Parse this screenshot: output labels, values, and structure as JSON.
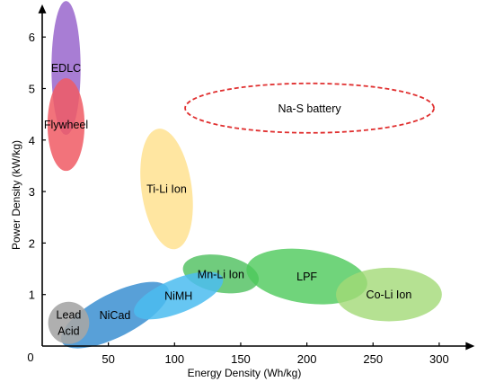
{
  "chart_data": {
    "type": "scatter",
    "title": "",
    "xlabel": "Energy Density (Wh/kg)",
    "ylabel": "Power Density (kW/kg)",
    "xlim": [
      0,
      320
    ],
    "ylim": [
      0,
      6.6
    ],
    "x_ticks": [
      50,
      100,
      150,
      200,
      250,
      300
    ],
    "y_ticks": [
      1,
      2,
      3,
      4,
      5,
      6
    ],
    "origin_label": "0",
    "grid": false,
    "legend": "none",
    "regions": [
      {
        "name": "EDLC",
        "label_lines": [
          "EDLC"
        ],
        "cx": 18,
        "cy": 5.4,
        "rx": 11,
        "ry": 1.3,
        "angle": 0,
        "color": "#9966cc",
        "opacity": 0.85,
        "style": "filled"
      },
      {
        "name": "Flywheel",
        "label_lines": [
          "Flywheel"
        ],
        "cx": 18,
        "cy": 4.3,
        "rx": 14,
        "ry": 0.9,
        "angle": 0,
        "color": "#f05a64",
        "opacity": 0.85,
        "style": "filled"
      },
      {
        "name": "Ti-Li Ion",
        "label_lines": [
          "Ti-Li Ion"
        ],
        "cx": 94,
        "cy": 3.05,
        "rx": 19,
        "ry": 1.18,
        "angle": -8,
        "color": "#ffe08a",
        "opacity": 0.8,
        "style": "filled"
      },
      {
        "name": "Mn-Li Ion",
        "label_lines": [
          "Mn-Li Ion"
        ],
        "cx": 135,
        "cy": 1.4,
        "rx": 29,
        "ry": 0.36,
        "angle": 10,
        "color": "#4cbf5c",
        "opacity": 0.8,
        "style": "filled"
      },
      {
        "name": "LPF",
        "label_lines": [
          "LPF"
        ],
        "cx": 200,
        "cy": 1.35,
        "rx": 46,
        "ry": 0.52,
        "angle": 8,
        "color": "#4cc95a",
        "opacity": 0.8,
        "style": "filled"
      },
      {
        "name": "Co-Li Ion",
        "label_lines": [
          "Co-Li Ion"
        ],
        "cx": 262,
        "cy": 1.0,
        "rx": 40,
        "ry": 0.52,
        "angle": 0,
        "color": "#a3d977",
        "opacity": 0.8,
        "style": "filled"
      },
      {
        "name": "NiCad",
        "label_lines": [
          "NiCad"
        ],
        "cx": 55,
        "cy": 0.6,
        "rx": 45,
        "ry": 0.42,
        "angle": -27,
        "color": "#3b8fd1",
        "opacity": 0.85,
        "style": "filled"
      },
      {
        "name": "NiMH",
        "label_lines": [
          "NiMH"
        ],
        "cx": 103,
        "cy": 0.98,
        "rx": 36,
        "ry": 0.33,
        "angle": -22,
        "color": "#4bbcf0",
        "opacity": 0.85,
        "style": "filled"
      },
      {
        "name": "Lead Acid",
        "label_lines": [
          "Lead",
          "Acid"
        ],
        "cx": 20,
        "cy": 0.45,
        "rx": 15.5,
        "ry": 0.41,
        "angle": 0,
        "color": "#a6a6a6",
        "opacity": 0.9,
        "style": "filled"
      },
      {
        "name": "Na-S battery",
        "label_lines": [
          "Na-S battery"
        ],
        "cx": 202,
        "cy": 4.62,
        "rx": 94,
        "ry": 0.48,
        "angle": 0,
        "color": "#e03030",
        "opacity": 1,
        "style": "dashed"
      }
    ]
  }
}
